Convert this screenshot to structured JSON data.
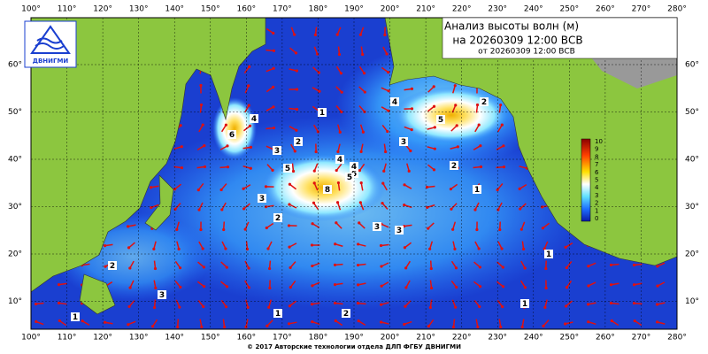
{
  "header": {
    "title": "Анализ высоты волн (м)",
    "valid": "на 20260309 12:00 ВСВ",
    "issued": "от 20260309 12:00 ВСВ"
  },
  "logo": {
    "text": "ДВНИГМИ"
  },
  "map": {
    "lon_labels": [
      "100°",
      "110°",
      "120°",
      "130°",
      "140°",
      "150°",
      "160°",
      "170°",
      "180°",
      "190°",
      "200°",
      "210°",
      "220°",
      "230°",
      "240°",
      "250°",
      "260°",
      "270°",
      "280°"
    ],
    "lat_labels": [
      "60°",
      "50°",
      "40°",
      "30°",
      "20°",
      "10°"
    ],
    "contour_labels": [
      "6",
      "4",
      "3",
      "2",
      "1",
      "4",
      "5",
      "6",
      "3",
      "2",
      "5",
      "4",
      "5",
      "8",
      "3",
      "4",
      "2",
      "3",
      "2",
      "1",
      "1",
      "2",
      "3",
      "1",
      "1",
      "2",
      "3",
      "1"
    ]
  },
  "colorbar": {
    "labels": [
      "10",
      "9",
      "8",
      "7",
      "6",
      "5",
      "4",
      "3",
      "2",
      "1",
      "0"
    ]
  },
  "footer": "© 2017 Авторские технологии отдела ДЛП ФГБУ ДВНИГМИ"
}
